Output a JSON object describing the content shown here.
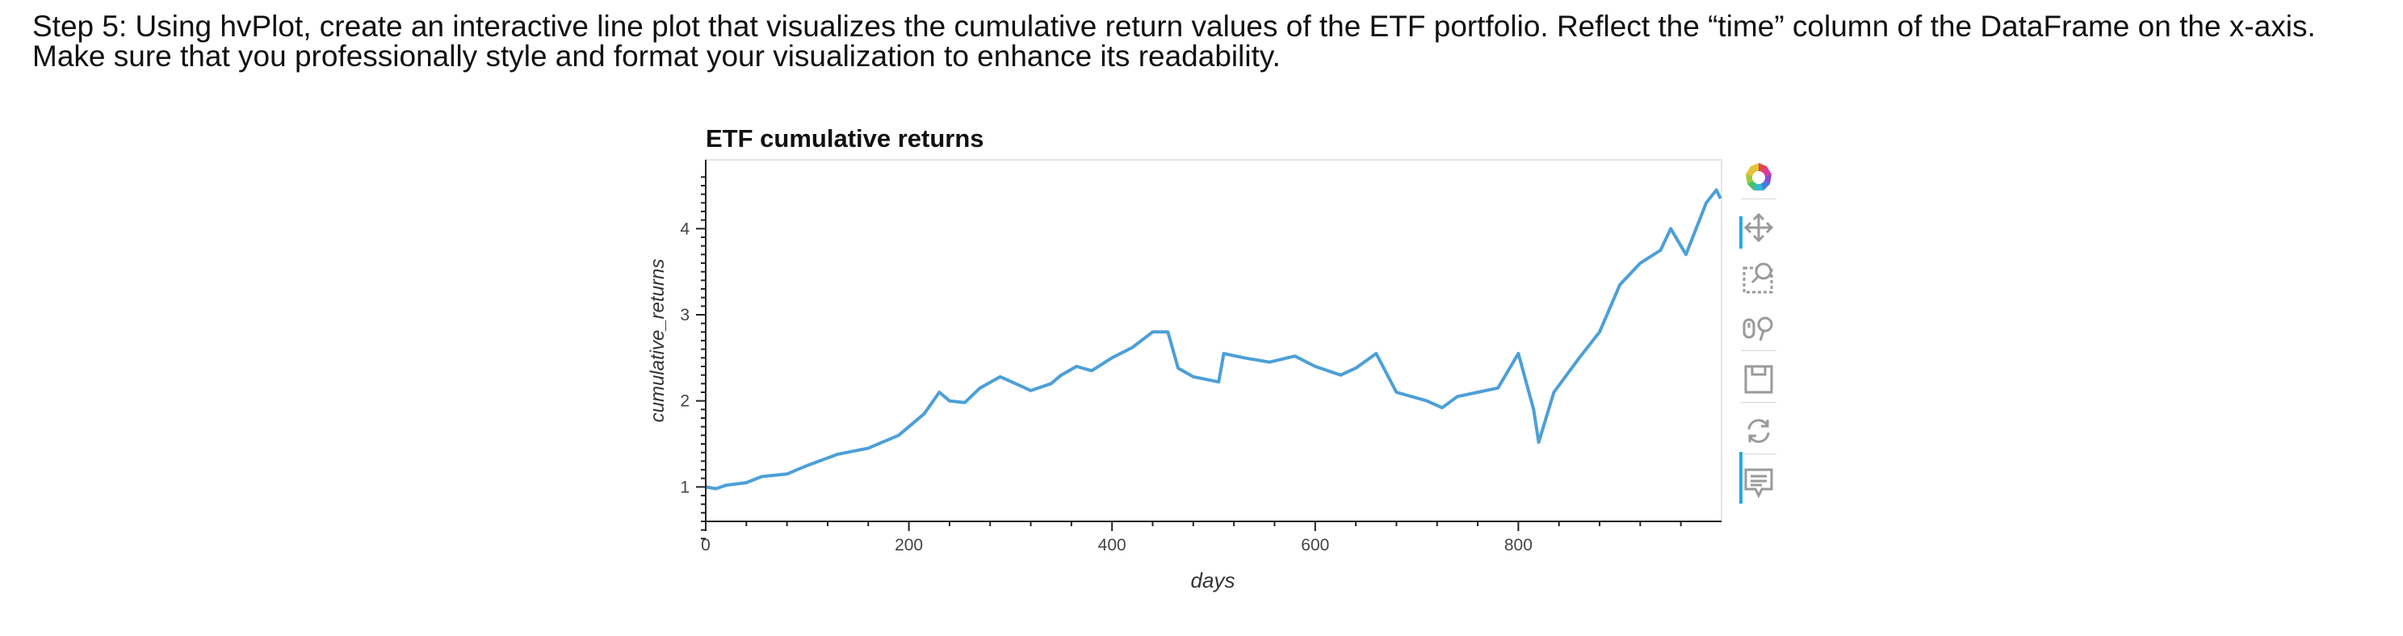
{
  "instructions": "Step 5: Using hvPlot, create an interactive line plot that visualizes the cumulative return values of the ETF portfolio. Reflect the “time” column of the DataFrame on the x-axis. Make sure that you professionally style and format your visualization to enhance its readability.",
  "chart_data": {
    "type": "line",
    "title": "ETF cumulative returns",
    "xlabel": "days",
    "ylabel": "cumulative_returns",
    "xlim": [
      0,
      1000
    ],
    "ylim": [
      0.6,
      4.8
    ],
    "xticks": [
      0,
      200,
      400,
      600,
      800
    ],
    "yticks": [
      1,
      2,
      3,
      4
    ],
    "grid": false,
    "legend": "none",
    "line_color": "#4c9fd8",
    "x": [
      0,
      10,
      20,
      40,
      55,
      80,
      100,
      130,
      160,
      190,
      215,
      230,
      240,
      255,
      270,
      290,
      305,
      320,
      340,
      350,
      365,
      380,
      400,
      420,
      440,
      455,
      465,
      480,
      505,
      510,
      530,
      555,
      580,
      600,
      625,
      640,
      660,
      680,
      710,
      725,
      740,
      760,
      780,
      800,
      815,
      820,
      835,
      860,
      880,
      900,
      920,
      940,
      950,
      965,
      985,
      995,
      999
    ],
    "y": [
      1.0,
      0.98,
      1.02,
      1.05,
      1.12,
      1.15,
      1.25,
      1.38,
      1.45,
      1.6,
      1.85,
      2.1,
      2.0,
      1.98,
      2.15,
      2.28,
      2.2,
      2.12,
      2.2,
      2.3,
      2.4,
      2.35,
      2.5,
      2.62,
      2.8,
      2.8,
      2.38,
      2.28,
      2.22,
      2.55,
      2.5,
      2.45,
      2.52,
      2.4,
      2.3,
      2.38,
      2.55,
      2.1,
      2.0,
      1.92,
      2.05,
      2.1,
      2.15,
      2.55,
      1.9,
      1.52,
      2.1,
      2.5,
      2.8,
      3.35,
      3.6,
      3.75,
      4.0,
      3.7,
      4.3,
      4.45,
      4.35
    ]
  },
  "toolbar": {
    "logo_icon": "bokeh-logo-icon",
    "pan_icon": "pan-icon",
    "box_zoom_icon": "box-zoom-icon",
    "wheel_zoom_icon": "wheel-zoom-icon",
    "save_icon": "save-icon",
    "reset_icon": "reset-icon",
    "hover_icon": "hover-icon"
  }
}
